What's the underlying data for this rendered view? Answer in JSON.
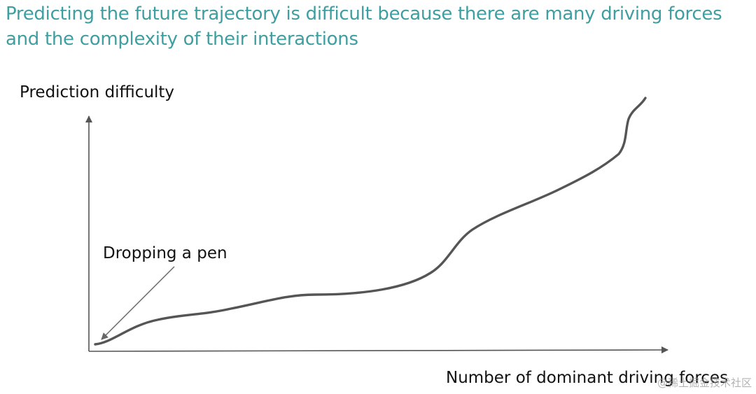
{
  "title": "Predicting the future trajectory is difficult because there are many driving forces and the complexity of their interactions",
  "diagram": {
    "y_axis_label": "Prediction difficulty",
    "x_axis_label": "Number of dominant driving forces",
    "annotation": "Dropping a pen",
    "curve_shape": "low near origin, slow rise, plateau, steep rise, steady climb, sharp final rise"
  },
  "watermark": "@稀土掘金技术社区",
  "colors": {
    "title": "#3f9ea0",
    "curve": "#555555",
    "axis": "#555555",
    "text": "#111111",
    "arrow": "#666666"
  }
}
